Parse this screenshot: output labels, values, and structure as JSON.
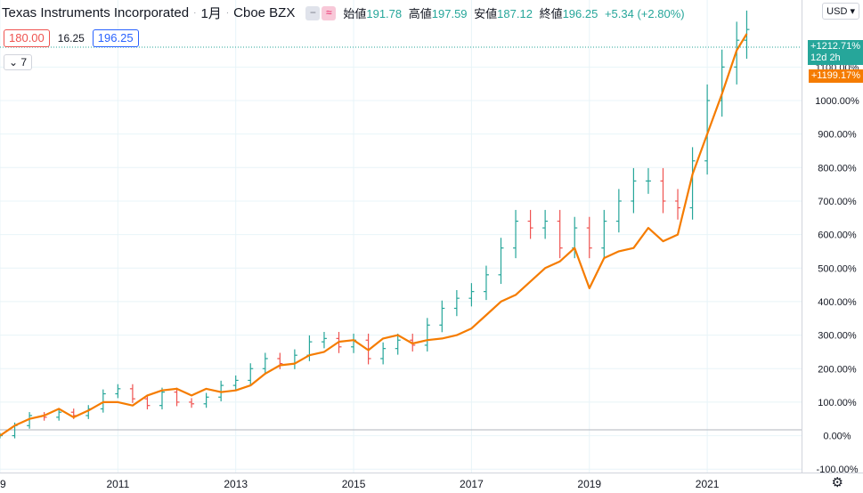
{
  "header": {
    "symbol": "Texas Instruments Incorporated",
    "interval": "1月",
    "exchange": "Cboe BZX",
    "badge1": "−",
    "badge2": "≈",
    "open_label": "始値",
    "open": "191.78",
    "high_label": "高値",
    "high": "197.59",
    "low_label": "安値",
    "low": "187.12",
    "close_label": "終値",
    "close": "196.25",
    "change": "+5.34 (+2.80%)"
  },
  "bid": "180.00",
  "spread": "16.25",
  "ask": "196.25",
  "indicators_count": "7",
  "currency": "USD",
  "tags": {
    "main_pct": "+1212.71%",
    "countdown": "12d 2h",
    "compare_pct": "+1199.17%"
  },
  "colors": {
    "up": "#26a69a",
    "down": "#ef5350",
    "compare_line": "#f57c00",
    "grid": "#e8f4f8"
  },
  "chart_data": {
    "type": "line",
    "y_unit": "%",
    "ylim": [
      -110,
      1300
    ],
    "y_ticks": [
      "-100.00%",
      "0.00%",
      "100.00%",
      "200.00%",
      "300.00%",
      "400.00%",
      "500.00%",
      "600.00%",
      "700.00%",
      "800.00%",
      "900.00%",
      "1000.00%",
      "1100.00%"
    ],
    "xlim": [
      2009.0,
      2022.6
    ],
    "x_ticks": [
      "9",
      "2011",
      "2013",
      "2015",
      "2017",
      "2019",
      "2021"
    ],
    "grid": true,
    "series": [
      {
        "style": "ohlc_bars",
        "x": [
          2009.0,
          2009.25,
          2009.5,
          2009.75,
          2010.0,
          2010.25,
          2010.5,
          2010.75,
          2011.0,
          2011.25,
          2011.5,
          2011.75,
          2012.0,
          2012.25,
          2012.5,
          2012.75,
          2013.0,
          2013.25,
          2013.5,
          2013.75,
          2014.0,
          2014.25,
          2014.5,
          2014.75,
          2015.0,
          2015.25,
          2015.5,
          2015.75,
          2016.0,
          2016.25,
          2016.5,
          2016.75,
          2017.0,
          2017.25,
          2017.5,
          2017.75,
          2018.0,
          2018.25,
          2018.5,
          2018.75,
          2019.0,
          2019.25,
          2019.5,
          2019.75,
          2020.0,
          2020.25,
          2020.5,
          2020.75,
          2021.0,
          2021.25,
          2021.5,
          2021.67
        ],
        "close": [
          0,
          30,
          60,
          55,
          70,
          60,
          80,
          125,
          140,
          110,
          90,
          130,
          100,
          95,
          115,
          150,
          165,
          200,
          230,
          215,
          240,
          280,
          290,
          265,
          285,
          230,
          260,
          285,
          270,
          330,
          380,
          410,
          430,
          480,
          560,
          640,
          620,
          640,
          560,
          620,
          560,
          640,
          700,
          760,
          760,
          700,
          680,
          820,
          1000,
          1100,
          1180,
          1212
        ]
      },
      {
        "style": "line",
        "x": [
          2009.0,
          2009.25,
          2009.5,
          2009.75,
          2010.0,
          2010.25,
          2010.5,
          2010.75,
          2011.0,
          2011.25,
          2011.5,
          2011.75,
          2012.0,
          2012.25,
          2012.5,
          2012.75,
          2013.0,
          2013.25,
          2013.5,
          2013.75,
          2014.0,
          2014.25,
          2014.5,
          2014.75,
          2015.0,
          2015.25,
          2015.5,
          2015.75,
          2016.0,
          2016.25,
          2016.5,
          2016.75,
          2017.0,
          2017.25,
          2017.5,
          2017.75,
          2018.0,
          2018.25,
          2018.5,
          2018.75,
          2019.0,
          2019.25,
          2019.5,
          2019.75,
          2020.0,
          2020.25,
          2020.5,
          2020.75,
          2021.0,
          2021.25,
          2021.5,
          2021.67
        ],
        "values": [
          0,
          30,
          50,
          60,
          80,
          55,
          75,
          100,
          100,
          90,
          120,
          135,
          140,
          120,
          140,
          130,
          135,
          150,
          185,
          210,
          215,
          240,
          250,
          280,
          285,
          255,
          290,
          300,
          275,
          285,
          290,
          300,
          320,
          360,
          400,
          420,
          460,
          500,
          520,
          560,
          440,
          530,
          550,
          560,
          620,
          580,
          600,
          780,
          900,
          1020,
          1150,
          1199
        ]
      }
    ]
  }
}
